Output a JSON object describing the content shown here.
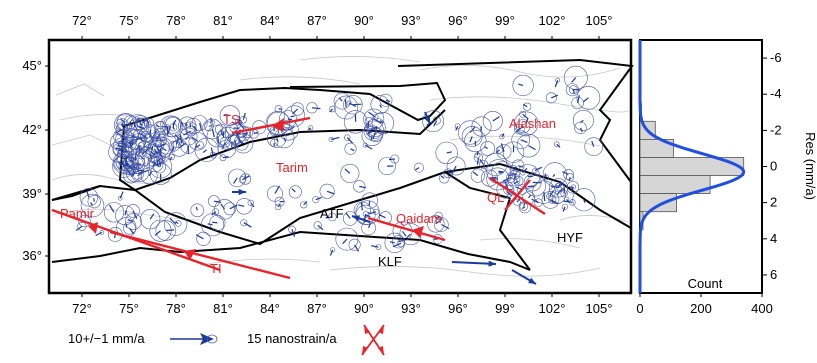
{
  "map": {
    "lon_ticks": [
      "72°",
      "75°",
      "78°",
      "81°",
      "84°",
      "87°",
      "90°",
      "93°",
      "96°",
      "99°",
      "102°",
      "105°"
    ],
    "lat_ticks": [
      "45°",
      "42°",
      "39°",
      "36°"
    ],
    "regions": [
      "TS",
      "Tarim",
      "Alashan",
      "Qaidam",
      "QL",
      "Pamir",
      "TI"
    ],
    "faults": [
      "ATF",
      "KLF",
      "HYF"
    ],
    "colors": {
      "vectors": "#1a3a9c",
      "strain": "#e8232a",
      "circles": "#4a5aa8",
      "boundaries": "#000000"
    }
  },
  "histogram": {
    "x_ticks": [
      "0",
      "200",
      "400"
    ],
    "x_label": "Count",
    "y_ticks": [
      "-6",
      "-4",
      "-2",
      "0",
      "2",
      "4",
      "6"
    ],
    "y_label": "Res (mm/a)"
  },
  "legend": {
    "velocity_label": "10+/−1 mm/a",
    "strain_label": "15 nanostrain/a"
  },
  "chart_data": {
    "type": "bar",
    "title": "",
    "xlabel": "Count",
    "ylabel": "Res (mm/a)",
    "bin_centers": [
      -3,
      -2,
      -1,
      0,
      1,
      2,
      3
    ],
    "values": [
      5,
      50,
      110,
      340,
      230,
      120,
      10
    ],
    "ylim": [
      -7,
      7
    ],
    "xlim": [
      0,
      400
    ],
    "fit_curve": "gaussian"
  }
}
